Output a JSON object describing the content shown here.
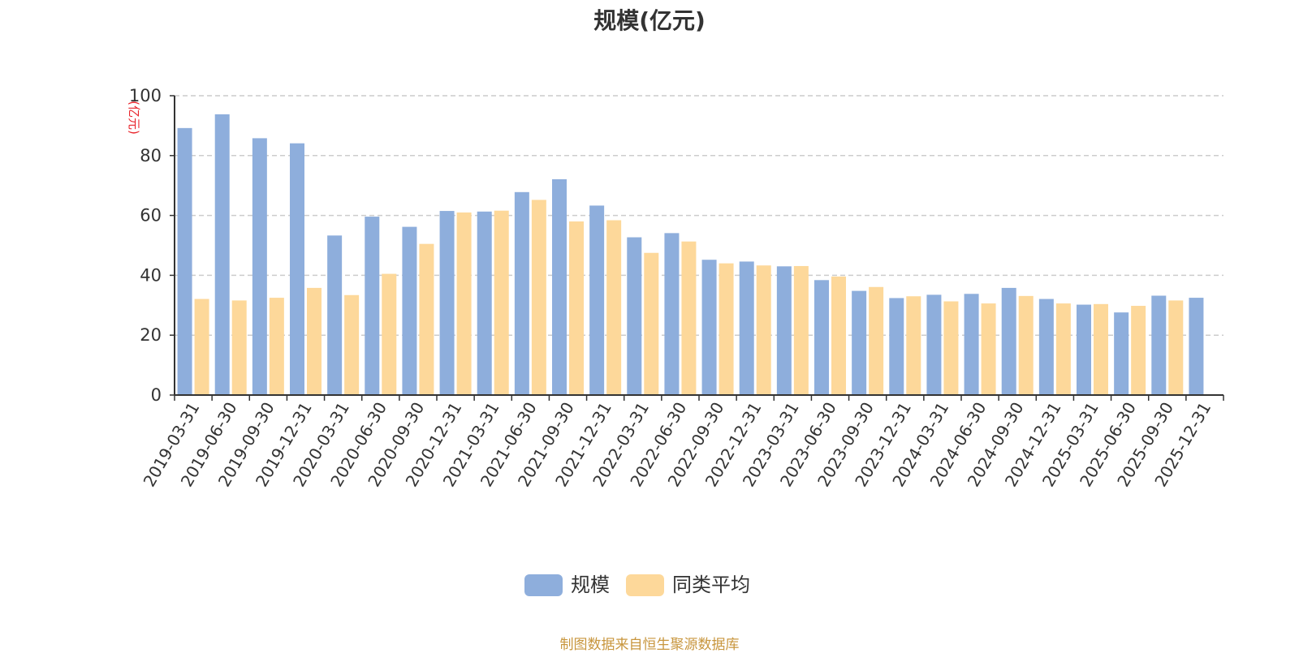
{
  "chart_data": {
    "type": "bar",
    "title": "规模(亿元)",
    "ylabel": "(亿元)",
    "ylim": [
      0,
      100
    ],
    "yticks": [
      0,
      20,
      40,
      60,
      80,
      100
    ],
    "grid": true,
    "legend_position": "bottom",
    "categories": [
      "2019-03-31",
      "2019-06-30",
      "2019-09-30",
      "2019-12-31",
      "2020-03-31",
      "2020-06-30",
      "2020-09-30",
      "2020-12-31",
      "2021-03-31",
      "2021-06-30",
      "2021-09-30",
      "2021-12-31",
      "2022-03-31",
      "2022-06-30",
      "2022-09-30",
      "2022-12-31",
      "2023-03-31",
      "2023-06-30",
      "2023-09-30",
      "2023-12-31",
      "2024-03-31",
      "2024-06-30",
      "2024-09-30",
      "2024-12-31",
      "2025-03-31",
      "2025-06-30",
      "2025-09-30",
      "2025-12-31"
    ],
    "series": [
      {
        "name": "规模",
        "color": "#8eaedc",
        "values": [
          89.2,
          93.8,
          85.8,
          84.1,
          53.3,
          59.6,
          56.2,
          61.5,
          61.3,
          67.8,
          72.1,
          63.3,
          52.7,
          54.1,
          45.2,
          44.6,
          43.0,
          38.4,
          34.8,
          32.4,
          33.5,
          33.8,
          35.8,
          32.1,
          30.2,
          27.6,
          33.2,
          32.5
        ]
      },
      {
        "name": "同类平均",
        "color": "#fdd89a",
        "values": [
          32.1,
          31.6,
          32.5,
          35.8,
          33.4,
          40.5,
          50.5,
          61.0,
          61.6,
          65.2,
          58.0,
          58.4,
          47.5,
          51.3,
          44.0,
          43.3,
          43.1,
          39.6,
          36.1,
          33.0,
          31.3,
          30.6,
          33.1,
          30.6,
          30.4,
          29.8,
          31.6,
          null
        ]
      }
    ]
  },
  "footer": {
    "source": "制图数据来自恒生聚源数据库"
  }
}
